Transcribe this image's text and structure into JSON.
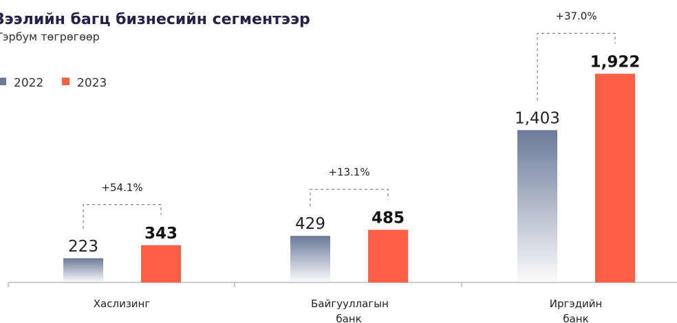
{
  "chart_data": {
    "type": "bar",
    "title": "Зээлийн багц бизнесийн сегментээр",
    "subtitle": "Тэрбум төгрөгөөр",
    "categories": [
      "Хаслизинг",
      "Байгууллагын банк",
      "Иргэдийн банк"
    ],
    "series": [
      {
        "name": "2022",
        "color": "#6b7a99",
        "values": [
          223,
          429,
          1403
        ],
        "value_labels": [
          "223",
          "429",
          "1,403"
        ]
      },
      {
        "name": "2023",
        "color": "#ff5f45",
        "values": [
          343,
          485,
          1922
        ],
        "value_labels": [
          "343",
          "485",
          "1,922"
        ]
      }
    ],
    "annotations": [
      "+54.1%",
      "+13.1%",
      "+37.0%"
    ],
    "ylim": [
      0,
      2000
    ],
    "legend": "top-left"
  }
}
